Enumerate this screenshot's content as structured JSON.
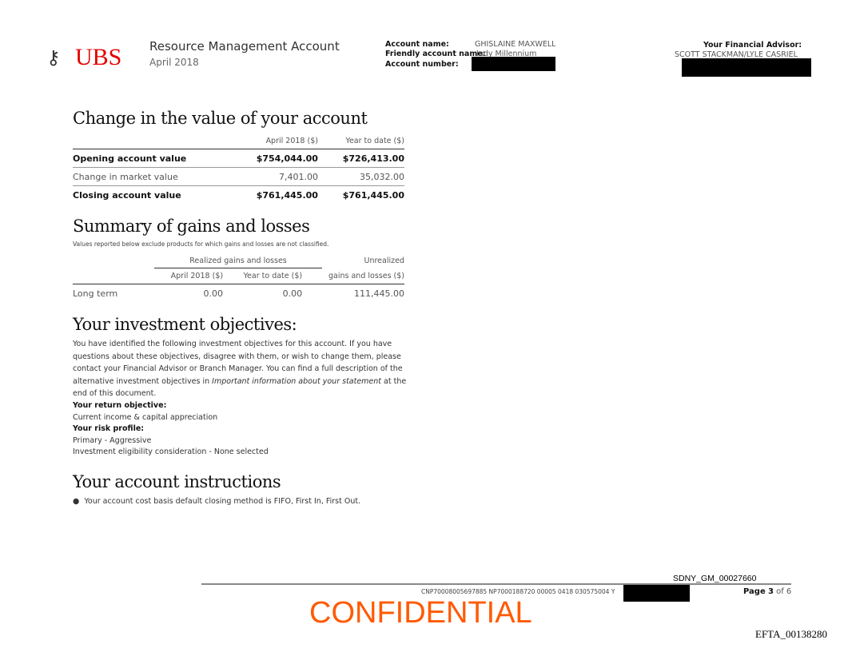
{
  "header": {
    "logo": "UBS",
    "title": "Resource Management Account",
    "period": "April 2018",
    "account_name_label": "Account name:",
    "account_name": "GHISLAINE MAXWELL",
    "friendly_label": "Friendly account name:",
    "friendly_name": "Indy Millennium",
    "account_number_label": "Account number:",
    "advisor_label": "Your Financial Advisor:",
    "advisor_names": "SCOTT STACKMAN/LYLE CASRIEL"
  },
  "change": {
    "title": "Change in the value of your account",
    "col1": "April 2018 ($)",
    "col2": "Year to date ($)",
    "rows": [
      {
        "label": "Opening account value",
        "v1": "$754,044.00",
        "v2": "$726,413.00",
        "bold": true
      },
      {
        "label": "Change in market value",
        "v1": "7,401.00",
        "v2": "35,032.00",
        "bold": false
      },
      {
        "label": "Closing account value",
        "v1": "$761,445.00",
        "v2": "$761,445.00",
        "bold": true
      }
    ]
  },
  "gains": {
    "title": "Summary of gains and losses",
    "note": "Values reported below exclude products for which gains and losses are not classified.",
    "group": "Realized gains and losses",
    "unrealized1": "Unrealized",
    "col1": "April 2018 ($)",
    "col2": "Year to date ($)",
    "col3": "gains and losses ($)",
    "row": {
      "label": "Long term",
      "v1": "0.00",
      "v2": "0.00",
      "v3": "111,445.00"
    }
  },
  "objectives": {
    "title": "Your investment objectives:",
    "para1": "You have identified the following investment objectives for this account. If you have questions about these objectives, disagree with them, or wish to change them, please contact your Financial Advisor or Branch Manager. You can find a full description of the alternative investment objectives in ",
    "para_italic": "Important information about your statement",
    "para2": " at the end of this document.",
    "return_label": "Your return objective:",
    "return_value": "Current income & capital appreciation",
    "risk_label": "Your risk profile:",
    "risk_value": "Primary - Aggressive",
    "eligibility": "Investment eligibility consideration - None selected"
  },
  "instructions": {
    "title": "Your account instructions",
    "bullet": "Your account cost basis default closing method is FIFO, First In, First Out."
  },
  "footer": {
    "bates": "SDNY_GM_00027660",
    "code": "CNP70008005697885 NP7000188720 00005 0418 030575004 Y",
    "page_label": "Page",
    "page": "3",
    "of": "of",
    "total": "6",
    "confidential": "CONFIDENTIAL",
    "efta": "EFTA_00138280"
  }
}
